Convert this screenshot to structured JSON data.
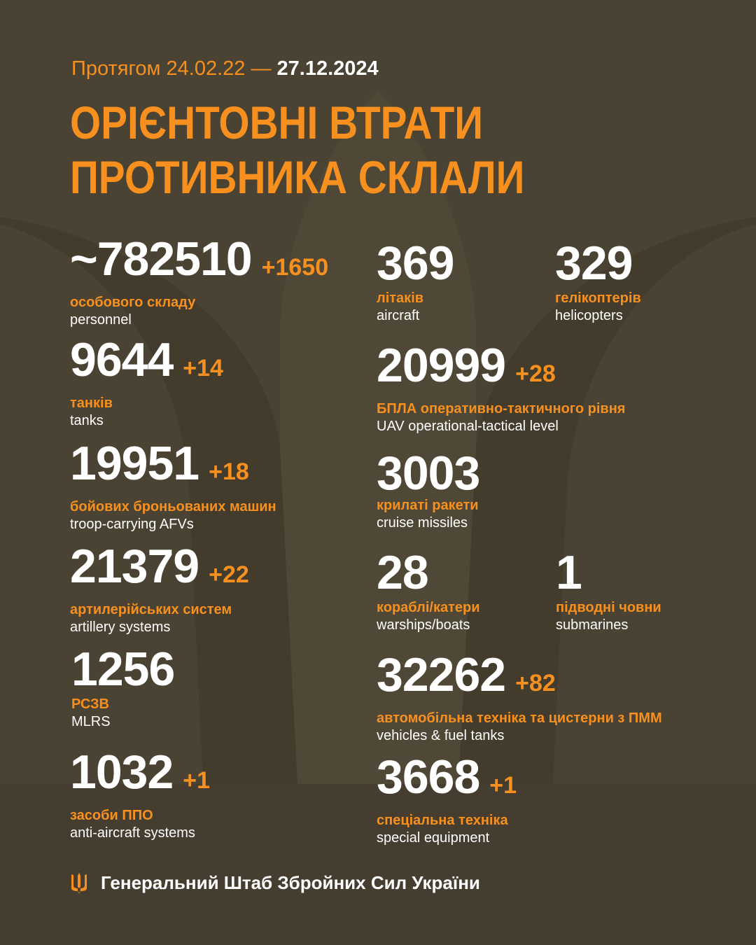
{
  "header": {
    "period_prefix": "Протягом 24.02.22 —",
    "period_end": "27.12.2024",
    "title_line1": "ОРІЄНТОВНІ ВТРАТИ",
    "title_line2": "ПРОТИВНИКА СКЛАЛИ"
  },
  "left": [
    {
      "value": "~782510",
      "increment": "+1650",
      "label_ua": "особового складу",
      "label_en": "personnel"
    },
    {
      "value": "9644",
      "increment": "+14",
      "label_ua": "танків",
      "label_en": "tanks"
    },
    {
      "value": "19951",
      "increment": "+18",
      "label_ua": "бойових броньованих машин",
      "label_en": "troop-carrying AFVs"
    },
    {
      "value": "21379",
      "increment": "+22",
      "label_ua": "артилерійських систем",
      "label_en": "artillery systems"
    },
    {
      "value": "1256",
      "increment": "",
      "label_ua": "РСЗВ",
      "label_en": "MLRS"
    },
    {
      "value": "1032",
      "increment": "+1",
      "label_ua": "засоби ППО",
      "label_en": "anti-aircraft systems"
    }
  ],
  "right": [
    {
      "value": "369",
      "increment": "",
      "label_ua": "літаків",
      "label_en": "aircraft"
    },
    {
      "value": "329",
      "increment": "",
      "label_ua": "гелікоптерів",
      "label_en": "helicopters"
    },
    {
      "value": "20999",
      "increment": "+28",
      "label_ua": "БПЛА оперативно-тактичного рівня",
      "label_en": "UAV operational-tactical level"
    },
    {
      "value": "3003",
      "increment": "",
      "label_ua": "крилаті ракети",
      "label_en": "cruise missiles"
    },
    {
      "value": "28",
      "increment": "",
      "label_ua": "кораблі/катери",
      "label_en": "warships/boats"
    },
    {
      "value": "1",
      "increment": "",
      "label_ua": "підводні човни",
      "label_en": "submarines"
    },
    {
      "value": "32262",
      "increment": "+82",
      "label_ua": "автомобільна техніка та цистерни з ПММ",
      "label_en": "vehicles & fuel tanks"
    },
    {
      "value": "3668",
      "increment": "+1",
      "label_ua": "спеціальна техніка",
      "label_en": "special equipment"
    }
  ],
  "footer": {
    "org": "Генеральний Штаб Збройних Сил України",
    "icon": "trident-icon"
  },
  "colors": {
    "background": "#4a4333",
    "accent": "#f7901e",
    "text": "#ffffff"
  }
}
